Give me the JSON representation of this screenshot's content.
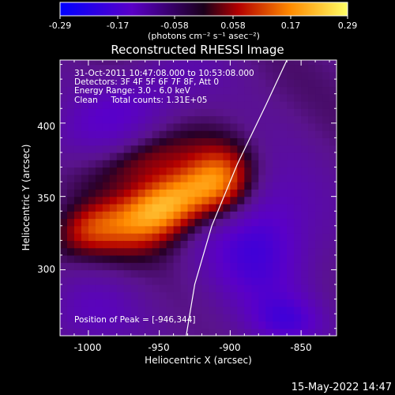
{
  "colorbar": {
    "ticks": [
      "-0.29",
      "-0.17",
      "-0.058",
      "0.058",
      "0.17",
      "0.29"
    ],
    "units": "(photons cm⁻² s⁻¹ asec⁻²)"
  },
  "annotations": {
    "line1": "31-Oct-2011 10:47:08.000 to 10:53:08.000",
    "line2": "Detectors: 3F 4F 5F 6F 7F 8F, Att 0",
    "line3": "Energy Range: 3.0 - 6.0 keV",
    "line4": "Clean     Total counts: 1.31E+05",
    "peak": "Position of Peak = [-946,344]"
  },
  "footer": {
    "date": "15-May-2022 14:47"
  },
  "colors": {
    "background": "#000000",
    "frame": "#ffffff",
    "limb": "#ffffff"
  },
  "chart_data": {
    "type": "heatmap",
    "title": "Reconstructed RHESSI Image",
    "xlabel": "Heliocentric X (arcsec)",
    "ylabel": "Heliocentric Y (arcsec)",
    "xlim": [
      -1020,
      -825
    ],
    "ylim": [
      255,
      443
    ],
    "x_ticks": [
      "-1000",
      "-950",
      "-900",
      "-850"
    ],
    "y_ticks": [
      "300",
      "350",
      "400"
    ],
    "colormap": "hot-to-purple diverging",
    "colorbar_range": [
      -0.29,
      0.29
    ],
    "peak": [
      -946,
      344
    ],
    "limb_curve": [
      [
        -931,
        255
      ],
      [
        -925,
        290
      ],
      [
        -913,
        330
      ],
      [
        -895,
        372
      ],
      [
        -875,
        412
      ],
      [
        -860,
        443
      ]
    ],
    "sources": [
      {
        "x": -946,
        "y": 344,
        "sx": 30,
        "sy": 15,
        "amp": 1.0,
        "angle": 28
      },
      {
        "x": -905,
        "y": 360,
        "sx": 16,
        "sy": 18,
        "amp": 0.55,
        "angle": 0
      },
      {
        "x": -1000,
        "y": 328,
        "sx": 18,
        "sy": 12,
        "amp": 0.45,
        "angle": 20
      },
      {
        "x": -960,
        "y": 375,
        "sx": 25,
        "sy": 10,
        "amp": 0.3,
        "angle": 20
      }
    ],
    "negative_lobes": [
      {
        "x": -880,
        "y": 320,
        "sx": 30,
        "sy": 35,
        "amp": -0.45,
        "angle": 0
      },
      {
        "x": -975,
        "y": 410,
        "sx": 45,
        "sy": 16,
        "amp": -0.3,
        "angle": 25
      },
      {
        "x": -1000,
        "y": 270,
        "sx": 25,
        "sy": 18,
        "amp": -0.25,
        "angle": 0
      },
      {
        "x": -860,
        "y": 265,
        "sx": 20,
        "sy": 12,
        "amp": -0.3,
        "angle": 0
      }
    ]
  }
}
